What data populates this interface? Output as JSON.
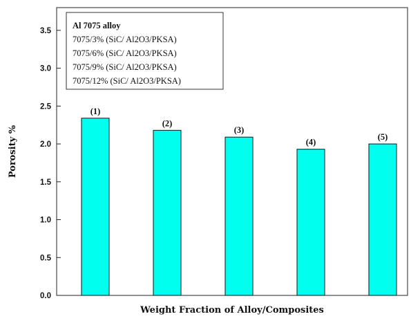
{
  "chart_data": {
    "type": "bar",
    "title": "",
    "xlabel": "Weight Fraction of Alloy/Composites",
    "ylabel": "Porosity %",
    "ylim": [
      0.0,
      3.8
    ],
    "yticks": [
      "0.0",
      "0.5",
      "1.0",
      "1.5",
      "2.0",
      "2.5",
      "3.0",
      "3.5"
    ],
    "categories": [
      "(1)",
      "(2)",
      "(3)",
      "(4)",
      "(5)"
    ],
    "values": [
      2.34,
      2.18,
      2.09,
      1.93,
      2.0
    ],
    "bar_color": "#00ffee",
    "grid": false,
    "legend_position": "top-left",
    "legend": {
      "title": "Al 7075 alloy",
      "entries": [
        "7075/3% (SiC/ Al2O3/PKSA)",
        "7075/6% (SiC/ Al2O3/PKSA)",
        "7075/9% (SiC/ Al2O3/PKSA)",
        "7075/12% (SiC/ Al2O3/PKSA)"
      ]
    }
  }
}
